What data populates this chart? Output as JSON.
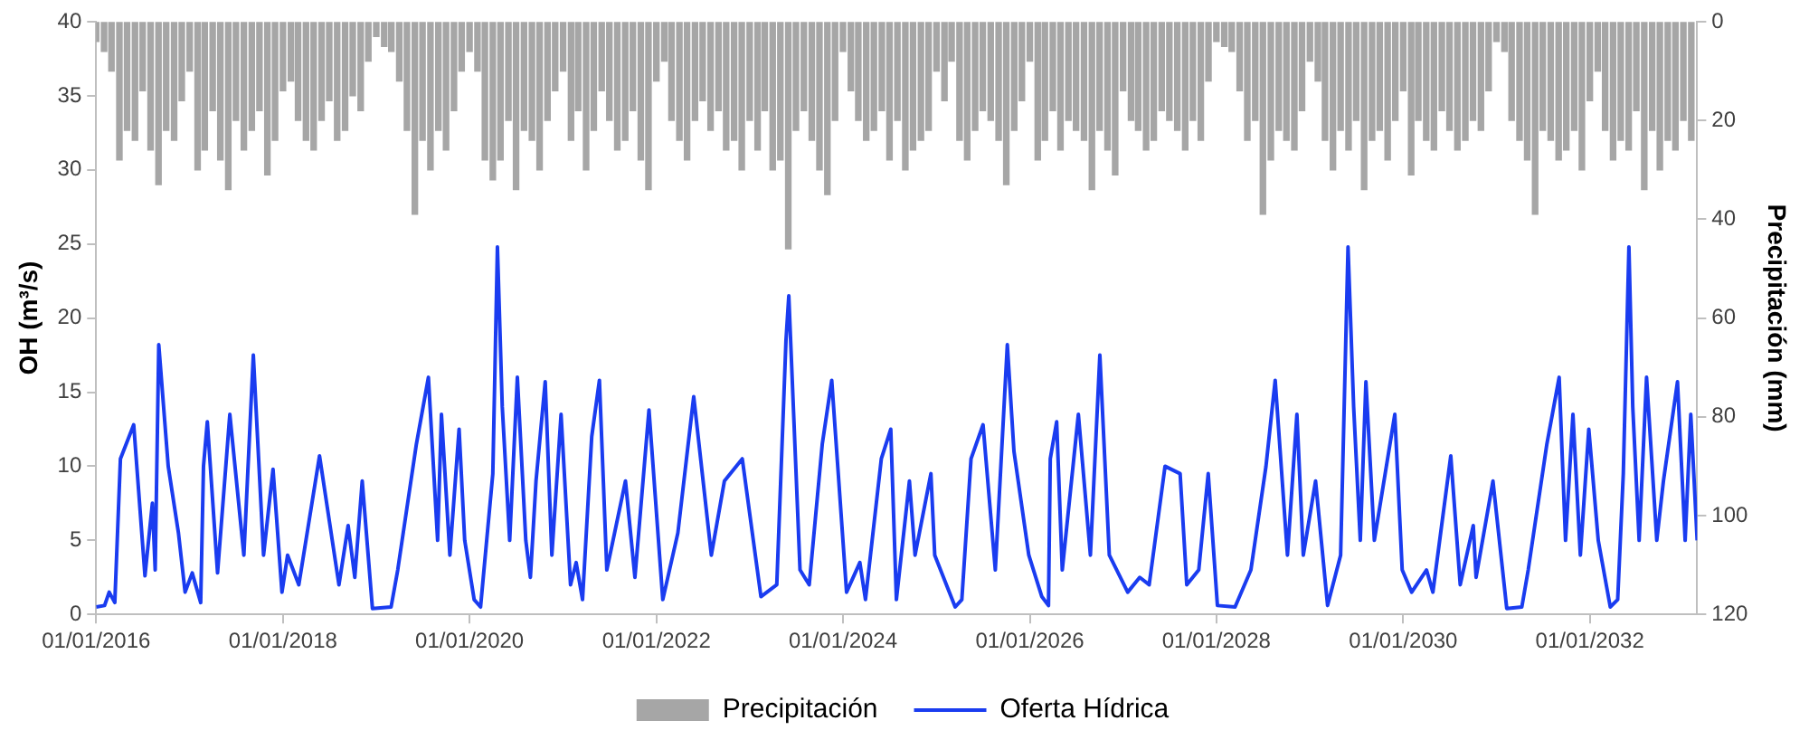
{
  "chart_data": {
    "type": "line",
    "ylabel": "OH (m³/s)",
    "y2label": "Precipitación (mm)",
    "legend": "bottom",
    "xlim": [
      "2016-01-01",
      "2033-02-24"
    ],
    "xticks": [
      {
        "value": "2016-01-01",
        "label": "01/01/2016"
      },
      {
        "value": "2018-01-01",
        "label": "01/01/2018"
      },
      {
        "value": "2020-01-01",
        "label": "01/01/2020"
      },
      {
        "value": "2022-01-01",
        "label": "01/01/2022"
      },
      {
        "value": "2024-01-01",
        "label": "01/01/2024"
      },
      {
        "value": "2026-01-01",
        "label": "01/01/2026"
      },
      {
        "value": "2028-01-01",
        "label": "01/01/2028"
      },
      {
        "value": "2030-01-01",
        "label": "01/01/2030"
      },
      {
        "value": "2032-01-01",
        "label": "01/01/2032"
      }
    ],
    "ylim": [
      0,
      40
    ],
    "yticks": [
      0,
      5,
      10,
      15,
      20,
      25,
      30,
      35,
      40
    ],
    "y2lim": [
      120,
      0
    ],
    "y2ticks": [
      0,
      20,
      40,
      60,
      80,
      100,
      120
    ],
    "series": [
      {
        "name": "Precipitación",
        "type": "bar",
        "axis": "y2",
        "color": "#a6a6a6",
        "x": [
          "2016-01",
          "2016-02",
          "2016-03",
          "2016-04",
          "2016-05",
          "2016-06",
          "2016-07",
          "2016-08",
          "2016-09",
          "2016-10",
          "2016-11",
          "2016-12",
          "2017-01",
          "2017-02",
          "2017-03",
          "2017-04",
          "2017-05",
          "2017-06",
          "2017-07",
          "2017-08",
          "2017-09",
          "2017-10",
          "2017-11",
          "2017-12",
          "2018-01",
          "2018-02",
          "2018-03",
          "2018-04",
          "2018-05",
          "2018-06",
          "2018-07",
          "2018-08",
          "2018-09",
          "2018-10",
          "2018-11",
          "2018-12",
          "2019-01",
          "2019-02",
          "2019-03",
          "2019-04",
          "2019-05",
          "2019-06",
          "2019-07",
          "2019-08",
          "2019-09",
          "2019-10",
          "2019-11",
          "2019-12",
          "2020-01",
          "2020-02",
          "2020-03",
          "2020-04",
          "2020-05",
          "2020-06",
          "2020-07",
          "2020-08",
          "2020-09",
          "2020-10",
          "2020-11",
          "2020-12",
          "2021-01",
          "2021-02",
          "2021-03",
          "2021-04",
          "2021-05",
          "2021-06",
          "2021-07",
          "2021-08",
          "2021-09",
          "2021-10",
          "2021-11",
          "2021-12",
          "2022-01",
          "2022-02",
          "2022-03",
          "2022-04",
          "2022-05",
          "2022-06",
          "2022-07",
          "2022-08",
          "2022-09",
          "2022-10",
          "2022-11",
          "2022-12",
          "2023-01",
          "2023-02",
          "2023-03",
          "2023-04",
          "2023-05",
          "2023-06",
          "2023-07",
          "2023-08",
          "2023-09",
          "2023-10",
          "2023-11",
          "2023-12",
          "2024-01",
          "2024-02",
          "2024-03",
          "2024-04",
          "2024-05",
          "2024-06",
          "2024-07",
          "2024-08",
          "2024-09",
          "2024-10",
          "2024-11",
          "2024-12",
          "2025-01",
          "2025-02",
          "2025-03",
          "2025-04",
          "2025-05",
          "2025-06",
          "2025-07",
          "2025-08",
          "2025-09",
          "2025-10",
          "2025-11",
          "2025-12",
          "2026-01",
          "2026-02",
          "2026-03",
          "2026-04",
          "2026-05",
          "2026-06",
          "2026-07",
          "2026-08",
          "2026-09",
          "2026-10",
          "2026-11",
          "2026-12",
          "2027-01",
          "2027-02",
          "2027-03",
          "2027-04",
          "2027-05",
          "2027-06",
          "2027-07",
          "2027-08",
          "2027-09",
          "2027-10",
          "2027-11",
          "2027-12",
          "2028-01",
          "2028-02",
          "2028-03",
          "2028-04",
          "2028-05",
          "2028-06",
          "2028-07",
          "2028-08",
          "2028-09",
          "2028-10",
          "2028-11",
          "2028-12",
          "2029-01",
          "2029-02",
          "2029-03",
          "2029-04",
          "2029-05",
          "2029-06",
          "2029-07",
          "2029-08",
          "2029-09",
          "2029-10",
          "2029-11",
          "2029-12",
          "2030-01",
          "2030-02",
          "2030-03",
          "2030-04",
          "2030-05",
          "2030-06",
          "2030-07",
          "2030-08",
          "2030-09",
          "2030-10",
          "2030-11",
          "2030-12",
          "2031-01",
          "2031-02",
          "2031-03",
          "2031-04",
          "2031-05",
          "2031-06",
          "2031-07",
          "2031-08",
          "2031-09",
          "2031-10",
          "2031-11",
          "2031-12",
          "2032-01",
          "2032-02",
          "2032-03",
          "2032-04",
          "2032-05",
          "2032-06",
          "2032-07",
          "2032-08",
          "2032-09",
          "2032-10",
          "2032-11",
          "2032-12",
          "2033-01",
          "2033-02"
        ],
        "values": [
          4,
          6,
          10,
          28,
          22,
          24,
          14,
          26,
          33,
          22,
          24,
          16,
          10,
          30,
          26,
          18,
          28,
          34,
          20,
          26,
          22,
          18,
          31,
          24,
          14,
          12,
          20,
          24,
          26,
          20,
          16,
          24,
          22,
          15,
          18,
          8,
          3,
          5,
          6,
          12,
          22,
          39,
          24,
          30,
          22,
          26,
          18,
          10,
          6,
          10,
          28,
          32,
          28,
          20,
          34,
          22,
          24,
          30,
          20,
          14,
          10,
          24,
          18,
          30,
          22,
          14,
          20,
          26,
          24,
          18,
          28,
          34,
          12,
          8,
          20,
          24,
          28,
          20,
          16,
          22,
          18,
          26,
          24,
          30,
          20,
          26,
          18,
          30,
          28,
          46,
          22,
          18,
          24,
          30,
          35,
          20,
          6,
          14,
          20,
          24,
          22,
          18,
          28,
          20,
          30,
          26,
          24,
          22,
          10,
          16,
          8,
          24,
          28,
          22,
          18,
          20,
          24,
          33,
          22,
          16,
          8,
          28,
          24,
          18,
          26,
          20,
          22,
          24,
          34,
          22,
          26,
          31,
          14,
          20,
          22,
          26,
          24,
          18,
          20,
          22,
          26,
          20,
          24,
          12,
          4,
          5,
          6,
          14,
          24,
          20,
          39,
          28,
          22,
          24,
          26,
          18,
          8,
          12,
          24,
          30,
          22,
          26,
          20,
          34,
          24,
          22,
          28,
          20,
          14,
          31,
          20,
          24,
          26,
          18,
          22,
          26,
          24,
          20,
          22,
          14,
          4,
          6,
          20,
          24,
          28,
          39,
          22,
          24,
          28,
          26,
          22,
          30,
          16,
          10,
          22,
          28,
          24,
          26,
          18,
          34,
          22,
          30,
          24,
          26,
          20,
          24
        ]
      },
      {
        "name": "Oferta Hídrica",
        "color": "#1a3cf0",
        "x": [
          "2016-01-01",
          "2016-02-03",
          "2016-02-21",
          "2016-03-14",
          "2016-04-05",
          "2016-05-27",
          "2016-07-10",
          "2016-08-08",
          "2016-08-19",
          "2016-09-02",
          "2016-10-09",
          "2016-11-18",
          "2016-12-14",
          "2017-01-11",
          "2017-02-13",
          "2017-02-24",
          "2017-03-11",
          "2017-04-20",
          "2017-06-07",
          "2017-08-01",
          "2017-09-07",
          "2017-10-17",
          "2017-11-23",
          "2017-12-28",
          "2018-01-19",
          "2018-03-04",
          "2018-05-24",
          "2018-08-08",
          "2018-09-13",
          "2018-10-09",
          "2018-11-07",
          "2018-12-17",
          "2019-02-28",
          "2019-03-26",
          "2019-06-07",
          "2019-07-24",
          "2019-08-29",
          "2019-09-13",
          "2019-10-16",
          "2019-11-21",
          "2019-12-13",
          "2020-01-19",
          "2020-02-13",
          "2020-04-01",
          "2020-04-19",
          "2020-05-08",
          "2020-06-06",
          "2020-07-06",
          "2020-08-08",
          "2020-08-26",
          "2020-09-17",
          "2020-10-23",
          "2020-11-18",
          "2020-12-24",
          "2021-01-30",
          "2021-02-21",
          "2021-03-18",
          "2021-04-23",
          "2021-05-23",
          "2021-06-21",
          "2021-09-02",
          "2021-10-09",
          "2021-12-03",
          "2022-01-26",
          "2022-03-26",
          "2022-05-27",
          "2022-08-04",
          "2022-09-24",
          "2022-12-03",
          "2023-02-14",
          "2023-04-17",
          "2023-05-23",
          "2023-06-03",
          "2023-07-17",
          "2023-08-22",
          "2023-10-12",
          "2023-11-18",
          "2024-01-15",
          "2024-03-07",
          "2024-03-29",
          "2024-05-30",
          "2024-07-06",
          "2024-07-28",
          "2024-09-17",
          "2024-10-09",
          "2024-12-10",
          "2024-12-25",
          "2025-03-15",
          "2025-04-10",
          "2025-05-16",
          "2025-07-02",
          "2025-08-19",
          "2025-10-05",
          "2025-10-31",
          "2025-12-28",
          "2026-02-17",
          "2026-03-15",
          "2026-03-22",
          "2026-04-16",
          "2026-05-08",
          "2026-07-10",
          "2026-08-26",
          "2026-10-02",
          "2026-11-08",
          "2027-01-19",
          "2027-03-07",
          "2027-04-13",
          "2027-06-14",
          "2027-08-12",
          "2027-09-07",
          "2027-10-24",
          "2027-11-30",
          "2028-01-05",
          "2028-03-14",
          "2028-05-15",
          "2028-07-13",
          "2028-08-18",
          "2028-10-05",
          "2028-11-11",
          "2028-12-06",
          "2029-01-23",
          "2029-03-11",
          "2029-05-01",
          "2029-05-30",
          "2029-06-21",
          "2029-07-17",
          "2029-08-08",
          "2029-09-10",
          "2029-11-29",
          "2029-12-28",
          "2030-02-03",
          "2030-04-02",
          "2030-04-27",
          "2030-07-06",
          "2030-08-12",
          "2030-10-02",
          "2030-10-13",
          "2030-12-18",
          "2031-02-10",
          "2031-04-10",
          "2031-05-05",
          "2031-07-17",
          "2031-09-03",
          "2031-09-28",
          "2031-10-27",
          "2031-11-25",
          "2031-12-28",
          "2032-02-03",
          "2032-03-21",
          "2032-04-19",
          "2032-05-11",
          "2032-06-02",
          "2032-06-17",
          "2032-07-12",
          "2032-08-10",
          "2032-09-19",
          "2032-10-15",
          "2032-12-09",
          "2033-01-08",
          "2033-01-30",
          "2033-02-24"
        ],
        "values": [
          0.5,
          0.6,
          1.5,
          0.8,
          10.5,
          12.8,
          2.6,
          7.5,
          3,
          18.2,
          10,
          5.5,
          1.5,
          2.8,
          0.8,
          10,
          13,
          2.8,
          13.5,
          4,
          17.5,
          4,
          9.8,
          1.5,
          4,
          2,
          10.7,
          2,
          6,
          2.5,
          9,
          0.4,
          0.5,
          3,
          11.5,
          16,
          5,
          13.5,
          4,
          12.5,
          5,
          1,
          0.5,
          9.5,
          24.8,
          14,
          5,
          16,
          5,
          2.5,
          9,
          15.7,
          4,
          13.5,
          2,
          3.5,
          1,
          12,
          15.8,
          3,
          9,
          2.5,
          13.8,
          1,
          5.5,
          14.7,
          4,
          9,
          10.5,
          1.2,
          2,
          18.5,
          21.5,
          3,
          2,
          11.5,
          15.8,
          1.5,
          3.5,
          1,
          10.5,
          12.5,
          1,
          9,
          4,
          9.5,
          4,
          0.5,
          1,
          10.5,
          12.8,
          3,
          18.2,
          11,
          4,
          1.2,
          0.6,
          10.5,
          13,
          3,
          13.5,
          4,
          17.5,
          4,
          1.5,
          2.5,
          2,
          10,
          9.5,
          2,
          3,
          9.5,
          0.6,
          0.5,
          3,
          10,
          15.8,
          4,
          13.5,
          4,
          9,
          0.6,
          4,
          24.8,
          14,
          5,
          15.7,
          5,
          13.5,
          3,
          1.5,
          3,
          1.5,
          10.7,
          2,
          6,
          2.5,
          9,
          0.4,
          0.5,
          3,
          11.5,
          16,
          5,
          13.5,
          4,
          12.5,
          5,
          0.5,
          1,
          9.5,
          24.8,
          14,
          5,
          16,
          5,
          9,
          15.7,
          5,
          13.5,
          5
        ]
      }
    ]
  }
}
